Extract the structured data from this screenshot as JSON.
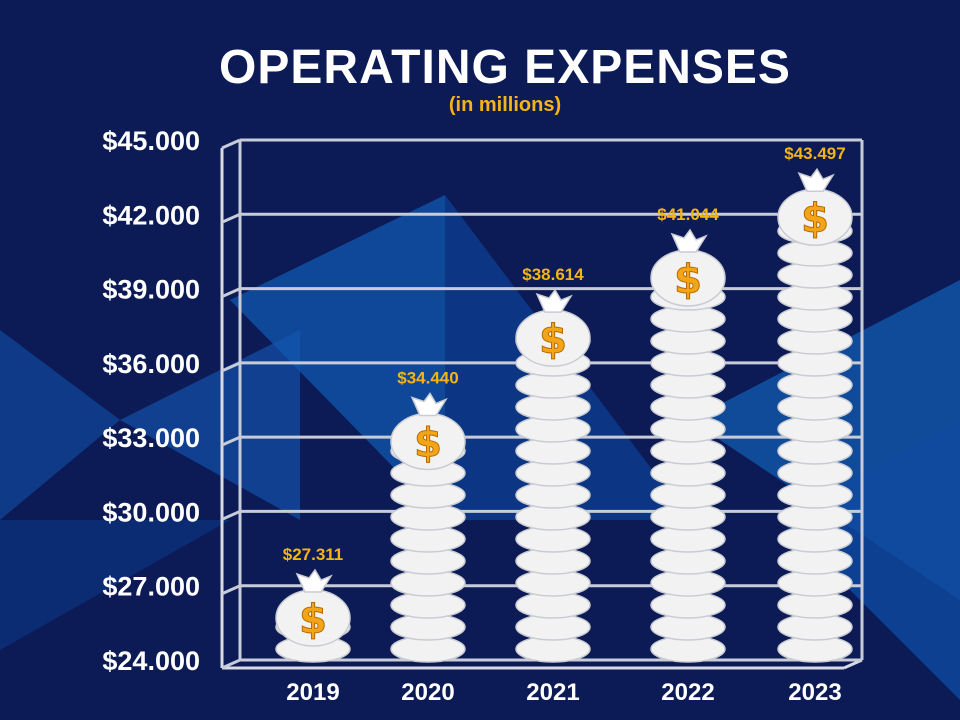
{
  "chart_data": {
    "type": "bar",
    "title": "OPERATING EXPENSES",
    "subtitle": "(in millions)",
    "categories": [
      "2019",
      "2020",
      "2021",
      "2022",
      "2023"
    ],
    "values": [
      27311,
      34440,
      38614,
      41044,
      43497
    ],
    "value_labels": [
      "$27.311",
      "$34.440",
      "$38.614",
      "$41.044",
      "$43.497"
    ],
    "ylim": [
      24000,
      45000
    ],
    "yticks": [
      24000,
      27000,
      30000,
      33000,
      36000,
      39000,
      42000,
      45000
    ],
    "ytick_labels": [
      "$24.000",
      "$27.000",
      "$30.000",
      "$33.000",
      "$36.000",
      "$39.000",
      "$42.000",
      "$45.000"
    ],
    "bag_symbol": "$",
    "grid": true,
    "colors": {
      "background": "#0c1b56",
      "bag": "#f2f2f2",
      "value_label": "#f5b416",
      "tick_label": "#ffffff",
      "dollar": "#f2a516"
    }
  }
}
